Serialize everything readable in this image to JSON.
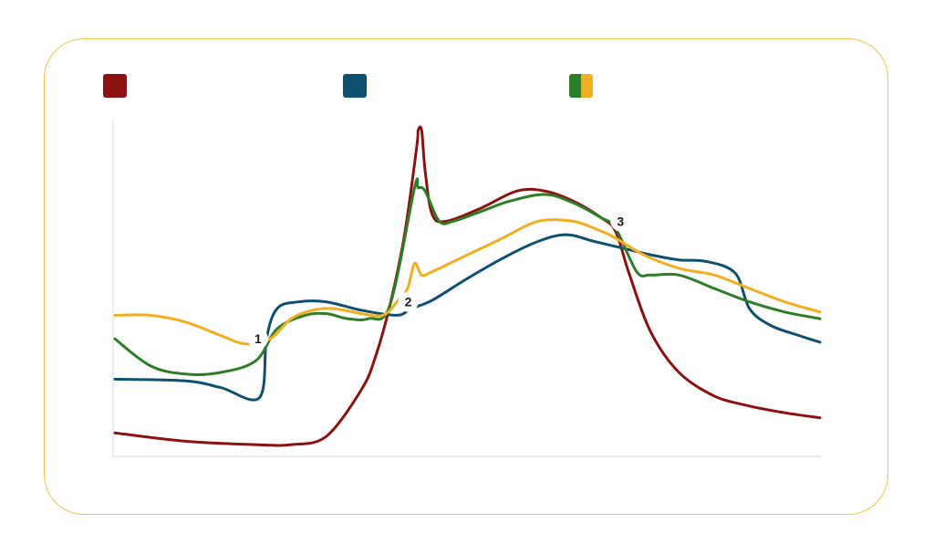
{
  "colors": {
    "card_border": "#f4c24a",
    "axis": "#ececec",
    "red": "#8c1111",
    "blue": "#0f5070",
    "green": "#2e7d27",
    "yellow": "#f2ae1e"
  },
  "legend": [
    {
      "colors": [
        "#8c1111"
      ]
    },
    {
      "colors": [
        "#0f5070"
      ]
    },
    {
      "colors": [
        "#2e7d27",
        "#f2ae1e"
      ]
    }
  ],
  "chart_data": {
    "type": "line",
    "title": "",
    "xlabel": "",
    "ylabel": "",
    "xlim": [
      0,
      100
    ],
    "ylim": [
      0,
      100
    ],
    "grid": false,
    "legend_placement": "top",
    "markers": [
      {
        "label": "1",
        "x": 20.3,
        "y": 35
      },
      {
        "label": "2",
        "x": 41.6,
        "y": 46
      },
      {
        "label": "3",
        "x": 71.7,
        "y": 70
      }
    ],
    "series": [
      {
        "color": "#8c1111",
        "points": [
          [
            0,
            7
          ],
          [
            10,
            4.5
          ],
          [
            20,
            3.5
          ],
          [
            25,
            3.5
          ],
          [
            30,
            6
          ],
          [
            35,
            20
          ],
          [
            37,
            30
          ],
          [
            39,
            45
          ],
          [
            41,
            65
          ],
          [
            42.8,
            92
          ],
          [
            43,
            97
          ],
          [
            43.5,
            97
          ],
          [
            44,
            85
          ],
          [
            45,
            72
          ],
          [
            47,
            70
          ],
          [
            52,
            74
          ],
          [
            57,
            79
          ],
          [
            61,
            79
          ],
          [
            65,
            76
          ],
          [
            69,
            71
          ],
          [
            71,
            67
          ],
          [
            73,
            54
          ],
          [
            76,
            37
          ],
          [
            80,
            25
          ],
          [
            85,
            18
          ],
          [
            90,
            15
          ],
          [
            95,
            13
          ],
          [
            100,
            11.5
          ]
        ]
      },
      {
        "color": "#0f5070",
        "points": [
          [
            0,
            23
          ],
          [
            10,
            22.5
          ],
          [
            15,
            20.5
          ],
          [
            20.5,
            17.5
          ],
          [
            21.5,
            35
          ],
          [
            23,
            44
          ],
          [
            26,
            46
          ],
          [
            30,
            46
          ],
          [
            35,
            43.5
          ],
          [
            40,
            42
          ],
          [
            42,
            44
          ],
          [
            45,
            46.5
          ],
          [
            50,
            53
          ],
          [
            55,
            59
          ],
          [
            60,
            64
          ],
          [
            64,
            66
          ],
          [
            68,
            64
          ],
          [
            72,
            62
          ],
          [
            76,
            60
          ],
          [
            80,
            58.5
          ],
          [
            84,
            58
          ],
          [
            88,
            54.5
          ],
          [
            90,
            44
          ],
          [
            93,
            39
          ],
          [
            97,
            36
          ],
          [
            100,
            34
          ]
        ]
      },
      {
        "color": "#2e7d27",
        "points": [
          [
            0,
            35
          ],
          [
            5,
            27
          ],
          [
            10,
            24.5
          ],
          [
            15,
            25
          ],
          [
            20,
            28.5
          ],
          [
            23,
            38
          ],
          [
            27,
            42
          ],
          [
            30,
            42.5
          ],
          [
            33,
            41
          ],
          [
            36,
            41
          ],
          [
            39,
            45
          ],
          [
            42.5,
            80
          ],
          [
            43,
            80
          ],
          [
            44,
            79
          ],
          [
            46,
            70
          ],
          [
            48,
            70
          ],
          [
            52,
            73
          ],
          [
            56,
            76
          ],
          [
            61,
            78
          ],
          [
            65,
            75.5
          ],
          [
            69,
            71
          ],
          [
            71,
            68
          ],
          [
            74,
            55
          ],
          [
            76,
            54
          ],
          [
            80,
            54
          ],
          [
            85,
            50
          ],
          [
            90,
            46
          ],
          [
            95,
            43
          ],
          [
            100,
            41
          ]
        ]
      },
      {
        "color": "#f2ae1e",
        "points": [
          [
            0,
            42
          ],
          [
            5,
            42
          ],
          [
            10,
            40
          ],
          [
            15,
            36
          ],
          [
            18.5,
            33.5
          ],
          [
            22,
            35
          ],
          [
            25,
            41
          ],
          [
            28,
            43.5
          ],
          [
            31,
            44
          ],
          [
            35,
            42.5
          ],
          [
            38,
            42
          ],
          [
            40,
            46
          ],
          [
            41.5,
            50
          ],
          [
            42.5,
            57.5
          ],
          [
            43.5,
            54
          ],
          [
            45,
            55
          ],
          [
            50,
            60
          ],
          [
            55,
            65
          ],
          [
            60,
            70
          ],
          [
            65,
            70
          ],
          [
            69,
            67
          ],
          [
            71,
            65
          ],
          [
            75,
            60
          ],
          [
            80,
            56
          ],
          [
            85,
            54
          ],
          [
            90,
            50
          ],
          [
            95,
            46
          ],
          [
            100,
            43
          ]
        ]
      }
    ]
  }
}
